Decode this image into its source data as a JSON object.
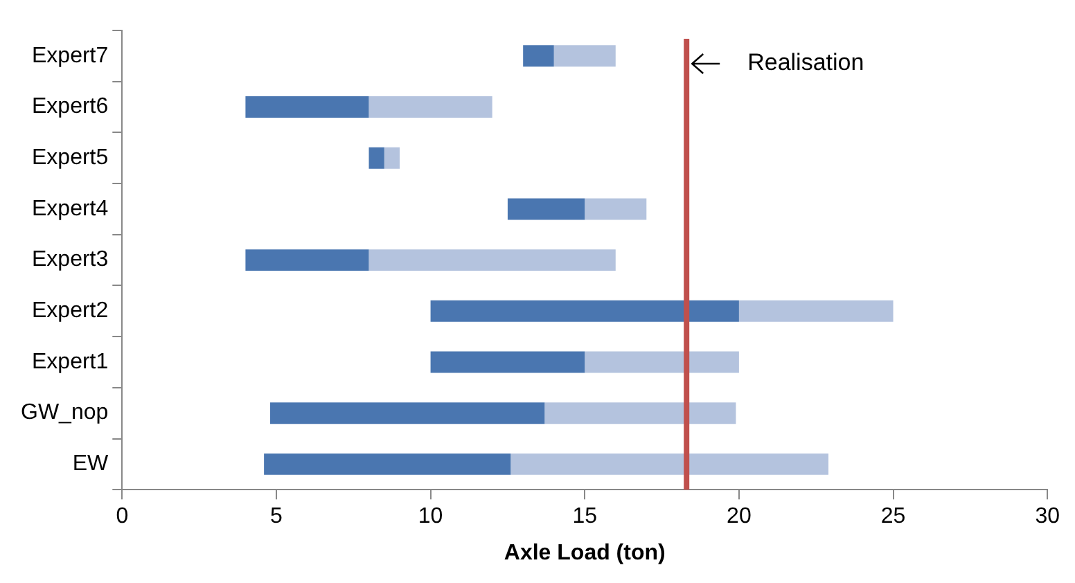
{
  "chart_data": {
    "type": "bar",
    "orientation": "horizontal",
    "xlabel": "Axle Load (ton)",
    "categories": [
      "Expert7",
      "Expert6",
      "Expert5",
      "Expert4",
      "Expert3",
      "Expert2",
      "Expert1",
      "GW_nop",
      "EW"
    ],
    "series": [
      {
        "color": "#4a76b0",
        "base": [
          13,
          4,
          8,
          12.5,
          4,
          10,
          10,
          4.8,
          4.6
        ],
        "values": [
          1,
          4,
          0.5,
          2.5,
          4,
          10,
          5,
          8.9,
          8.0
        ]
      },
      {
        "color": "#b4c3de",
        "base": [
          14,
          8,
          8.5,
          15,
          8,
          20,
          15,
          13.7,
          12.6
        ],
        "values": [
          2,
          4,
          0.5,
          2,
          8,
          5,
          5,
          6.2,
          10.3
        ]
      }
    ],
    "xlim": [
      0,
      30
    ],
    "xticks": [
      0,
      5,
      10,
      15,
      20,
      25,
      30
    ],
    "grid": false,
    "legend": false,
    "ref_lines": [
      {
        "axis": "x",
        "value": 18.3,
        "label": "Realisation",
        "color": "#c0504d"
      }
    ]
  }
}
